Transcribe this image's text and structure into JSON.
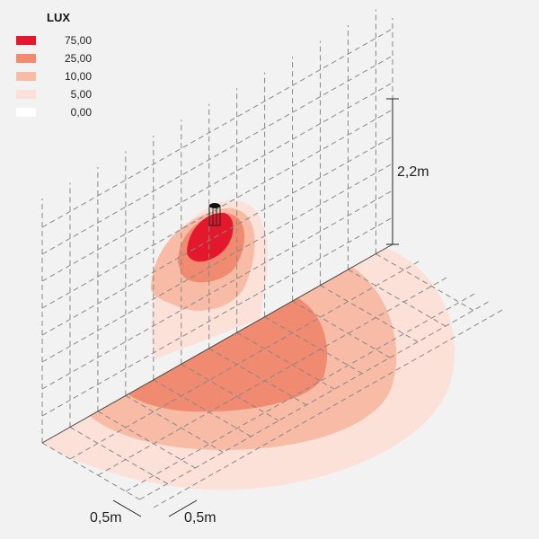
{
  "legend": {
    "title": "LUX",
    "items": [
      {
        "value": "75,00",
        "color": "#e3182d"
      },
      {
        "value": "25,00",
        "color": "#f08a70"
      },
      {
        "value": "10,00",
        "color": "#f7bba6"
      },
      {
        "value": "5,00",
        "color": "#fce1d8"
      },
      {
        "value": "0,00",
        "color": "#ffffff"
      }
    ]
  },
  "dimensions": {
    "height": "2,2m",
    "grid_x": "0,5m",
    "grid_y": "0,5m"
  },
  "fixture_icon": "wall-lamp-icon"
}
